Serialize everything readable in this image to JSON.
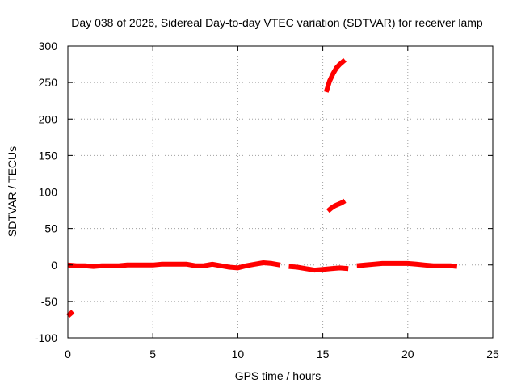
{
  "chart_data": {
    "type": "scatter",
    "title": "Day 038 of 2026, Sidereal Day-to-day VTEC variation (SDTVAR) for receiver lamp",
    "xlabel": "GPS time / hours",
    "ylabel": "SDTVAR / TECUs",
    "xlim": [
      0,
      25
    ],
    "ylim": [
      -100,
      300
    ],
    "xticks": [
      0,
      5,
      10,
      15,
      20,
      25
    ],
    "yticks": [
      -100,
      -50,
      0,
      50,
      100,
      150,
      200,
      250,
      300
    ],
    "grid": true,
    "series": [
      {
        "name": "SDTVAR",
        "color": "#ff0000",
        "segments": [
          {
            "x": [
              0.0,
              0.3
            ],
            "y": [
              -70,
              -64
            ]
          },
          {
            "x": [
              0.0,
              0.5,
              1.0,
              1.5,
              2.0,
              2.5,
              3.0,
              3.5,
              4.0,
              4.5,
              5.0,
              5.5,
              6.0,
              6.5,
              7.0,
              7.5,
              8.0,
              8.5,
              9.0,
              9.5,
              10.0,
              10.5,
              11.0,
              11.5,
              12.0,
              12.5
            ],
            "y": [
              0,
              -1,
              -1,
              -2,
              -1,
              -1,
              -1,
              0,
              0,
              0,
              0,
              1,
              1,
              1,
              1,
              -1,
              -1,
              1,
              -1,
              -3,
              -4,
              -1,
              1,
              3,
              2,
              0
            ]
          },
          {
            "x": [
              13.0,
              13.5,
              14.0,
              14.5,
              15.0,
              15.5,
              16.0,
              16.5
            ],
            "y": [
              -2,
              -3,
              -5,
              -7,
              -6,
              -5,
              -4,
              -5
            ]
          },
          {
            "x": [
              17.0,
              17.5,
              18.0,
              18.5,
              19.0,
              19.5,
              20.0,
              20.5,
              21.0,
              21.5,
              22.0,
              22.5,
              22.9
            ],
            "y": [
              -1,
              0,
              1,
              2,
              2,
              2,
              2,
              1,
              0,
              -1,
              -1,
              -1,
              -2
            ]
          },
          {
            "x": [
              15.3,
              15.5,
              15.7,
              15.9,
              16.1,
              16.3
            ],
            "y": [
              74,
              78,
              81,
              83,
              85,
              88
            ]
          },
          {
            "x": [
              15.2,
              15.4,
              15.6,
              15.8,
              16.0,
              16.3
            ],
            "y": [
              237,
              252,
              262,
              270,
              275,
              281
            ]
          }
        ]
      }
    ]
  }
}
